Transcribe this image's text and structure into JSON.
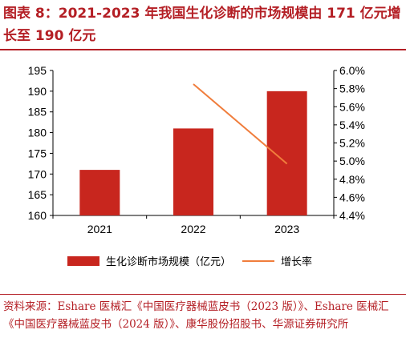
{
  "title": "图表 8：2021-2023 年我国生化诊断的市场规模由 171 亿元增长至 190 亿元",
  "source": "资料来源：Eshare 医械汇《中国医疗器械蓝皮书（2023 版）》、Eshare 医械汇《中国医疗器械蓝皮书（2024 版）》、康华股份招股书、华源证券研究所",
  "colors": {
    "bar": "#c8261e",
    "line": "#f07d3c",
    "title": "#b41f25"
  },
  "chart_data": {
    "type": "bar",
    "categories": [
      "2021",
      "2022",
      "2023"
    ],
    "series": [
      {
        "name": "生化诊断市场规模（亿元）",
        "type": "bar",
        "axis": "left",
        "values": [
          171,
          181,
          190
        ]
      },
      {
        "name": "增长率",
        "type": "line",
        "axis": "right",
        "values": [
          null,
          5.85,
          4.97
        ]
      }
    ],
    "ylim": [
      160,
      195
    ],
    "yticks": [
      "160",
      "165",
      "170",
      "175",
      "180",
      "185",
      "190",
      "195"
    ],
    "y2lim": [
      4.4,
      6.0
    ],
    "y2ticks": [
      "4.4%",
      "4.6%",
      "4.8%",
      "5.0%",
      "5.2%",
      "5.4%",
      "5.6%",
      "5.8%",
      "6.0%"
    ],
    "grid": false,
    "legend_position": "bottom"
  }
}
